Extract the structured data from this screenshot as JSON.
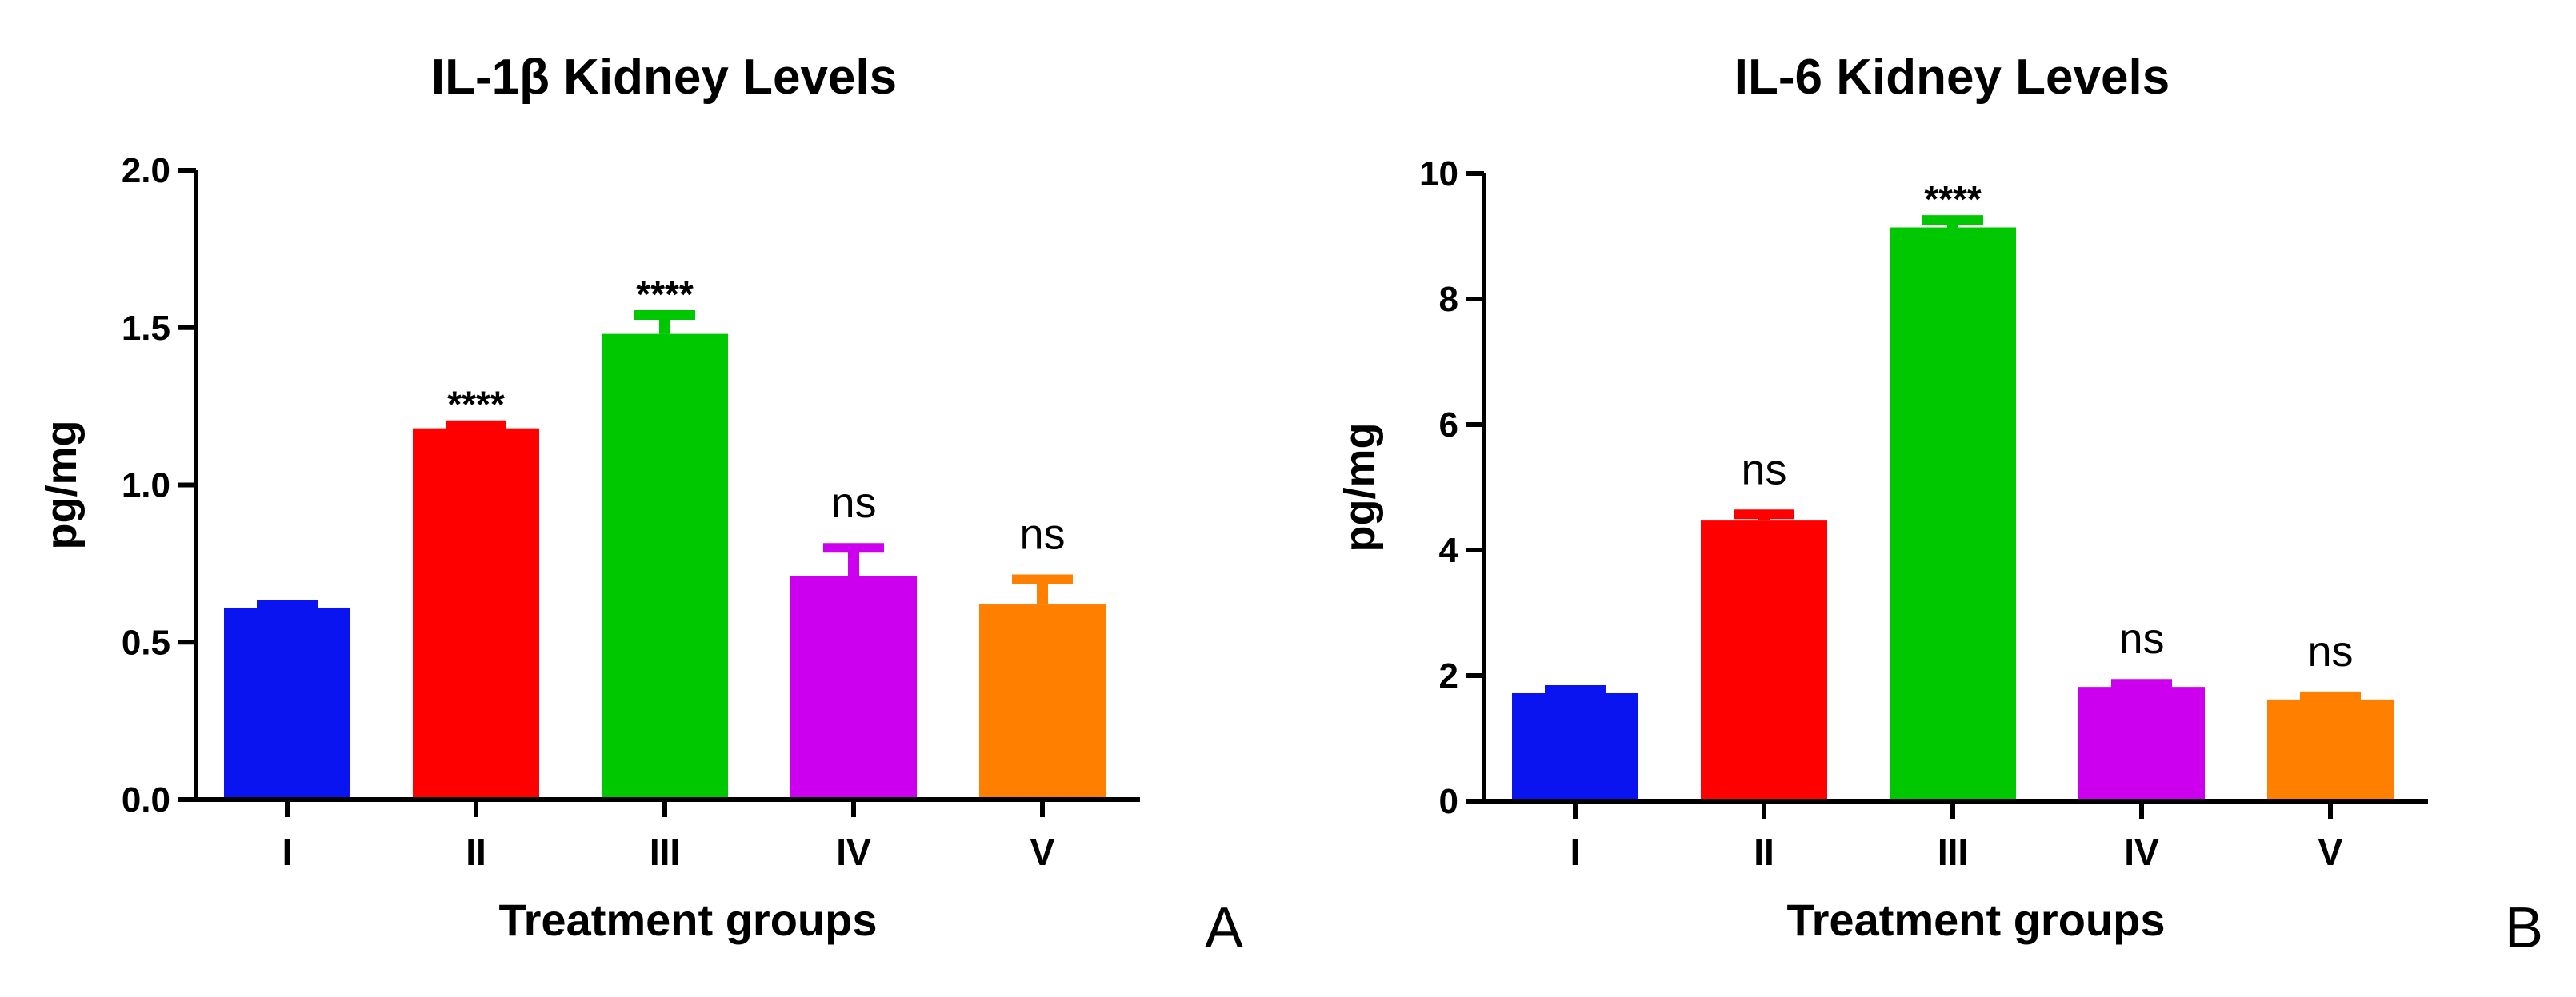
{
  "chart_data": [
    {
      "type": "bar",
      "title": "IL-1β Kidney Levels",
      "xlabel": "Treatment groups",
      "ylabel": "pg/mg",
      "ylim": [
        0,
        2.0
      ],
      "yticks": [
        "0.0",
        "0.5",
        "1.0",
        "1.5",
        "2.0"
      ],
      "ytick_values": [
        0,
        0.5,
        1.0,
        1.5,
        2.0
      ],
      "categories": [
        "I",
        "II",
        "III",
        "IV",
        "V"
      ],
      "values": [
        0.61,
        1.18,
        1.48,
        0.71,
        0.62
      ],
      "errors": [
        0.01,
        0.01,
        0.06,
        0.09,
        0.08
      ],
      "colors": [
        "#0a14f0",
        "#ff0000",
        "#00c800",
        "#cc00ee",
        "#ff8000"
      ],
      "annotations": [
        "",
        "****",
        "****",
        "ns",
        "ns"
      ],
      "panel_label": "A"
    },
    {
      "type": "bar",
      "title": "IL-6 Kidney Levels",
      "xlabel": "Treatment groups",
      "ylabel": "pg/mg",
      "ylim": [
        0,
        10
      ],
      "yticks": [
        "0",
        "2",
        "4",
        "6",
        "8",
        "10"
      ],
      "ytick_values": [
        0,
        2,
        4,
        6,
        8,
        10
      ],
      "categories": [
        "I",
        "II",
        "III",
        "IV",
        "V"
      ],
      "values": [
        1.72,
        4.47,
        9.14,
        1.82,
        1.62
      ],
      "errors": [
        0.05,
        0.1,
        0.12,
        0.05,
        0.05
      ],
      "colors": [
        "#0a14f0",
        "#ff0000",
        "#00c800",
        "#cc00ee",
        "#ff8000"
      ],
      "annotations": [
        "",
        "ns",
        "****",
        "ns",
        "ns"
      ],
      "panel_label": "B"
    }
  ]
}
